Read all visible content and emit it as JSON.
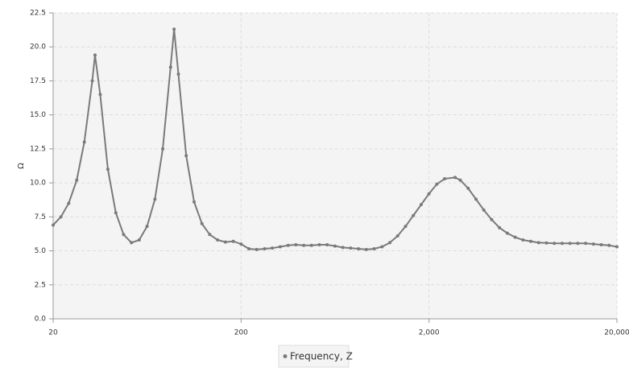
{
  "chart_data": {
    "type": "line",
    "y_label": "Ω",
    "log_x": true,
    "grid": true,
    "xlim": [
      20,
      20000
    ],
    "ylim": [
      0,
      22.5
    ],
    "xticks": [
      20,
      200,
      {
        "value": 2000,
        "label": "2,000"
      },
      {
        "value": 20000,
        "label": "20,000"
      }
    ],
    "yticks": [
      {
        "value": 0,
        "label": "0.0"
      },
      2.5,
      {
        "value": 5,
        "label": "5.0"
      },
      7.5,
      {
        "value": 10,
        "label": "10.0"
      },
      12.5,
      {
        "value": 15,
        "label": "15.0"
      },
      17.5,
      {
        "value": 20,
        "label": "20.0"
      },
      22.5
    ],
    "x": [
      20,
      22.0,
      24.2,
      26.7,
      29.3,
      32.3,
      33.4,
      35.6,
      39.1,
      43.1,
      47.4,
      52.2,
      57.4,
      63.2,
      69.6,
      76.6,
      84.3,
      88,
      92.8,
      102.1,
      112.5,
      123.8,
      136.2,
      150,
      165.1,
      181.7,
      200,
      220,
      242,
      267,
      293,
      323,
      356,
      391,
      431,
      474,
      522,
      574,
      632,
      696,
      766,
      843,
      928,
      1021,
      1125,
      1238,
      1362,
      1500,
      1651,
      1817,
      2000,
      2201,
      2423,
      2754,
      2935,
      3231,
      3557,
      3915,
      4309,
      4743,
      5221,
      5747,
      6325,
      6962,
      7663,
      8435,
      9285,
      10220,
      11249,
      12382,
      13628,
      15000,
      16511,
      18174,
      20000
    ],
    "series": [
      {
        "name": "Frequency, Z",
        "color": "#7a7a7a",
        "values": [
          6.9,
          7.5,
          8.5,
          10.2,
          13.0,
          17.5,
          19.4,
          16.5,
          11.0,
          7.8,
          6.2,
          5.6,
          5.8,
          6.8,
          8.8,
          12.5,
          18.5,
          21.3,
          18.0,
          12.0,
          8.6,
          7.0,
          6.2,
          5.8,
          5.65,
          5.7,
          5.5,
          5.15,
          5.1,
          5.15,
          5.2,
          5.3,
          5.4,
          5.45,
          5.4,
          5.4,
          5.45,
          5.45,
          5.35,
          5.25,
          5.2,
          5.15,
          5.1,
          5.15,
          5.3,
          5.6,
          6.1,
          6.8,
          7.6,
          8.4,
          9.2,
          9.9,
          10.3,
          10.4,
          10.2,
          9.6,
          8.8,
          8.0,
          7.3,
          6.7,
          6.3,
          6.0,
          5.8,
          5.7,
          5.6,
          5.58,
          5.55,
          5.55,
          5.55,
          5.55,
          5.55,
          5.5,
          5.45,
          5.4,
          5.3
        ]
      }
    ]
  }
}
